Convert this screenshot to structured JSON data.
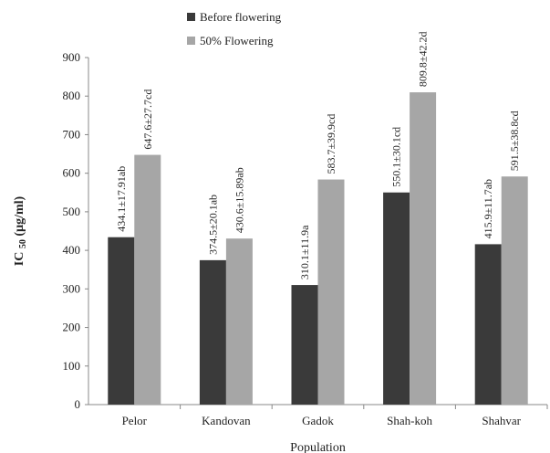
{
  "chart_data": {
    "type": "bar",
    "xlabel": "Population",
    "ylabel_main": "IC",
    "ylabel_sub": "50",
    "ylabel_unit": "(µg/ml)",
    "ylim": [
      0,
      900
    ],
    "yticks": [
      0,
      100,
      200,
      300,
      400,
      500,
      600,
      700,
      800,
      900
    ],
    "grid": false,
    "legend_position": "top-center",
    "categories": [
      "Pelor",
      "Kandovan",
      "Gadok",
      "Shah-koh",
      "Shahvar"
    ],
    "series": [
      {
        "name": "Before flowering",
        "color": "#3a3a3a",
        "values": [
          434.1,
          374.5,
          310.1,
          550.1,
          415.9
        ],
        "labels": [
          "434.1±17.91ab",
          "374.5±20.1ab",
          "310.1±11.9a",
          "550.1±30.1cd",
          "415.9±11.7ab"
        ]
      },
      {
        "name": "50% Flowering",
        "color": "#a6a6a6",
        "values": [
          647.6,
          430.6,
          583.7,
          809.8,
          591.5
        ],
        "labels": [
          "647.6±27.7cd",
          "430.6±15.89ab",
          "583.7±39.9cd",
          "809.8±42.2d",
          "591.5±38.8cd"
        ]
      }
    ]
  }
}
